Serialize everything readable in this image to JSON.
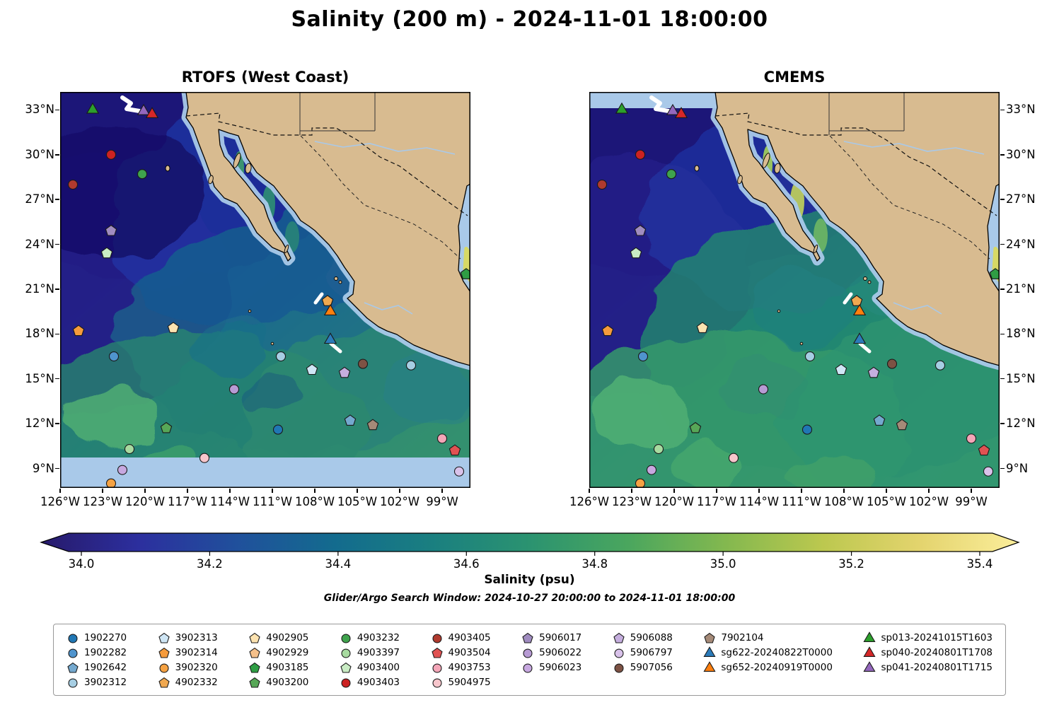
{
  "chart_data": {
    "type": "heatmap",
    "title": "Salinity (200 m) - 2024-11-01 18:00:00",
    "panels": [
      {
        "title": "RTOFS (West Coast)",
        "variant": "rtofs"
      },
      {
        "title": "CMEMS",
        "variant": "cmems"
      }
    ],
    "axes": {
      "lat_tick_labels": [
        "33°N",
        "30°N",
        "27°N",
        "24°N",
        "21°N",
        "18°N",
        "15°N",
        "12°N",
        "9°N"
      ],
      "lat_tick_values": [
        33,
        30,
        27,
        24,
        21,
        18,
        15,
        12,
        9
      ],
      "lon_tick_labels": [
        "126°W",
        "123°W",
        "120°W",
        "117°W",
        "114°W",
        "111°W",
        "108°W",
        "105°W",
        "102°W",
        "99°W"
      ],
      "lon_tick_values": [
        126,
        123,
        120,
        117,
        114,
        111,
        108,
        105,
        102,
        99
      ],
      "lon_range_deg_west": [
        126,
        97
      ],
      "lat_range_deg_north": [
        8,
        34.2
      ],
      "grid": false
    },
    "colorbar": {
      "label": "Salinity (psu)",
      "tick_labels": [
        "34.0",
        "34.2",
        "34.4",
        "34.6",
        "34.8",
        "35.0",
        "35.2",
        "35.4"
      ],
      "tick_values": [
        34.0,
        34.2,
        34.4,
        34.6,
        34.8,
        35.0,
        35.2,
        35.4
      ],
      "gradient": [
        "#271a6b",
        "#2c2f9e",
        "#20509c",
        "#136b8e",
        "#1a7f80",
        "#2b9370",
        "#4aa65e",
        "#83b84f",
        "#bcc84f",
        "#e4d46e",
        "#fbee9b"
      ]
    },
    "search_window": "Glider/Argo Search Window: 2024-10-27 20:00:00 to 2024-11-01 18:00:00",
    "land_color": "#d8bb90",
    "shallow_mask_color": "#a9c9e9",
    "legend_columns": [
      [
        {
          "id": "1902270",
          "shape": "circle",
          "color": "#2077b4"
        },
        {
          "id": "1902282",
          "shape": "circle",
          "color": "#4f94cd"
        },
        {
          "id": "1902642",
          "shape": "pentagon",
          "color": "#74a9cf"
        },
        {
          "id": "3902312",
          "shape": "circle",
          "color": "#a6cee3"
        }
      ],
      [
        {
          "id": "3902313",
          "shape": "pentagon",
          "color": "#cfe6f5"
        },
        {
          "id": "3902314",
          "shape": "pentagon",
          "color": "#f59b3c"
        },
        {
          "id": "3902320",
          "shape": "circle",
          "color": "#f5a243"
        },
        {
          "id": "4902332",
          "shape": "pentagon",
          "color": "#f0a850"
        }
      ],
      [
        {
          "id": "4902905",
          "shape": "pentagon",
          "color": "#fde3b0"
        },
        {
          "id": "4902929",
          "shape": "pentagon",
          "color": "#f5c08a"
        },
        {
          "id": "4903185",
          "shape": "pentagon",
          "color": "#2f9e44"
        },
        {
          "id": "4903200",
          "shape": "pentagon",
          "color": "#57a757"
        }
      ],
      [
        {
          "id": "4903232",
          "shape": "circle",
          "color": "#3fa34d"
        },
        {
          "id": "4903397",
          "shape": "circle",
          "color": "#a8dba0"
        },
        {
          "id": "4903400",
          "shape": "pentagon",
          "color": "#c9ecc4"
        },
        {
          "id": "4903403",
          "shape": "circle",
          "color": "#cc2222"
        }
      ],
      [
        {
          "id": "4903405",
          "shape": "circle",
          "color": "#b03a2e"
        },
        {
          "id": "4903504",
          "shape": "pentagon",
          "color": "#e05252"
        },
        {
          "id": "4903753",
          "shape": "circle",
          "color": "#f4a6b8"
        },
        {
          "id": "5904975",
          "shape": "circle",
          "color": "#f7c6cc"
        }
      ],
      [
        {
          "id": "5906017",
          "shape": "pentagon",
          "color": "#a08cc0"
        },
        {
          "id": "5906022",
          "shape": "circle",
          "color": "#b79bd4"
        },
        {
          "id": "5906023",
          "shape": "circle",
          "color": "#c7a8e0"
        }
      ],
      [
        {
          "id": "5906088",
          "shape": "pentagon",
          "color": "#c5aede"
        },
        {
          "id": "5906797",
          "shape": "circle",
          "color": "#d9c2ea"
        },
        {
          "id": "5907056",
          "shape": "circle",
          "color": "#7d5244"
        }
      ],
      [
        {
          "id": "7902104",
          "shape": "pentagon",
          "color": "#a58a78"
        },
        {
          "id": "sg622-20240822T0000",
          "shape": "triangle",
          "color": "#2b7bba"
        },
        {
          "id": "sg652-20240919T0000",
          "shape": "triangle",
          "color": "#ff7f0e"
        }
      ],
      [
        {
          "id": "sp013-20241015T1603",
          "shape": "triangle",
          "color": "#2ca02c"
        },
        {
          "id": "sp040-20240801T1708",
          "shape": "triangle",
          "color": "#d62728"
        },
        {
          "id": "sp041-20240801T1715",
          "shape": "triangle",
          "color": "#9467bd"
        }
      ]
    ],
    "markers": [
      {
        "id": "sp013-20241015T1603",
        "shape": "triangle",
        "color": "#2ca02c",
        "lon": 123.7,
        "lat": 33.0
      },
      {
        "id": "sp041-20240801T1715",
        "shape": "triangle",
        "color": "#9467bd",
        "lon": 120.1,
        "lat": 32.9
      },
      {
        "id": "sp040-20240801T1708",
        "shape": "triangle",
        "color": "#d62728",
        "lon": 119.5,
        "lat": 32.7
      },
      {
        "id": "4903403",
        "shape": "circle",
        "color": "#cc2222",
        "lon": 122.4,
        "lat": 30.0
      },
      {
        "id": "4903405",
        "shape": "circle",
        "color": "#b03a2e",
        "lon": 125.1,
        "lat": 28.0
      },
      {
        "id": "4903232",
        "shape": "circle",
        "color": "#3fa34d",
        "lon": 120.2,
        "lat": 28.7
      },
      {
        "id": "5906017",
        "shape": "pentagon",
        "color": "#a08cc0",
        "lon": 122.4,
        "lat": 24.9
      },
      {
        "id": "4903400",
        "shape": "pentagon",
        "color": "#c9ecc4",
        "lon": 122.7,
        "lat": 23.4
      },
      {
        "id": "3902314",
        "shape": "pentagon",
        "color": "#f59b3c",
        "lon": 124.7,
        "lat": 18.2
      },
      {
        "id": "4902905",
        "shape": "pentagon",
        "color": "#fde3b0",
        "lon": 118.0,
        "lat": 18.4
      },
      {
        "id": "1902282",
        "shape": "circle",
        "color": "#4f94cd",
        "lon": 122.2,
        "lat": 16.5
      },
      {
        "id": "4902332",
        "shape": "pentagon",
        "color": "#f0a850",
        "lon": 107.1,
        "lat": 20.2
      },
      {
        "id": "sg652-20240919T0000",
        "shape": "triangle",
        "color": "#ff7f0e",
        "lon": 106.9,
        "lat": 19.5
      },
      {
        "id": "sg622-20240822T0000",
        "shape": "triangle",
        "color": "#2b7bba",
        "lon": 106.9,
        "lat": 17.6
      },
      {
        "id": "3902312",
        "shape": "circle",
        "color": "#a6cee3",
        "lon": 110.4,
        "lat": 16.5
      },
      {
        "id": "3902313",
        "shape": "pentagon",
        "color": "#cfe6f5",
        "lon": 108.2,
        "lat": 15.6
      },
      {
        "id": "5906088",
        "shape": "pentagon",
        "color": "#c5aede",
        "lon": 105.9,
        "lat": 15.4
      },
      {
        "id": "5907056",
        "shape": "circle",
        "color": "#7d5244",
        "lon": 104.6,
        "lat": 16.0
      },
      {
        "id": "3902312",
        "shape": "circle",
        "color": "#a6cee3",
        "lon": 101.2,
        "lat": 15.9
      },
      {
        "id": "5906022",
        "shape": "circle",
        "color": "#b79bd4",
        "lon": 113.7,
        "lat": 14.3
      },
      {
        "id": "1902642",
        "shape": "pentagon",
        "color": "#74a9cf",
        "lon": 105.5,
        "lat": 12.2
      },
      {
        "id": "7902104",
        "shape": "pentagon",
        "color": "#a58a78",
        "lon": 103.9,
        "lat": 11.9
      },
      {
        "id": "4903200",
        "shape": "pentagon",
        "color": "#57a757",
        "lon": 118.5,
        "lat": 11.7
      },
      {
        "id": "1902270",
        "shape": "circle",
        "color": "#2077b4",
        "lon": 110.6,
        "lat": 11.6
      },
      {
        "id": "4903753",
        "shape": "circle",
        "color": "#f4a6b8",
        "lon": 99.0,
        "lat": 11.0
      },
      {
        "id": "4903397",
        "shape": "circle",
        "color": "#a8dba0",
        "lon": 121.1,
        "lat": 10.3
      },
      {
        "id": "4903504",
        "shape": "pentagon",
        "color": "#e05252",
        "lon": 98.1,
        "lat": 10.2
      },
      {
        "id": "5904975",
        "shape": "circle",
        "color": "#f7c6cc",
        "lon": 115.8,
        "lat": 9.7
      },
      {
        "id": "5906023",
        "shape": "circle",
        "color": "#c7a8e0",
        "lon": 121.6,
        "lat": 8.9
      },
      {
        "id": "3902320",
        "shape": "circle",
        "color": "#f5a243",
        "lon": 122.4,
        "lat": 8.0
      },
      {
        "id": "5906797",
        "shape": "circle",
        "color": "#d9c2ea",
        "lon": 97.8,
        "lat": 8.8
      },
      {
        "id": "4903185",
        "shape": "pentagon",
        "color": "#2f9e44",
        "lon": 97.3,
        "lat": 22.0
      }
    ]
  }
}
